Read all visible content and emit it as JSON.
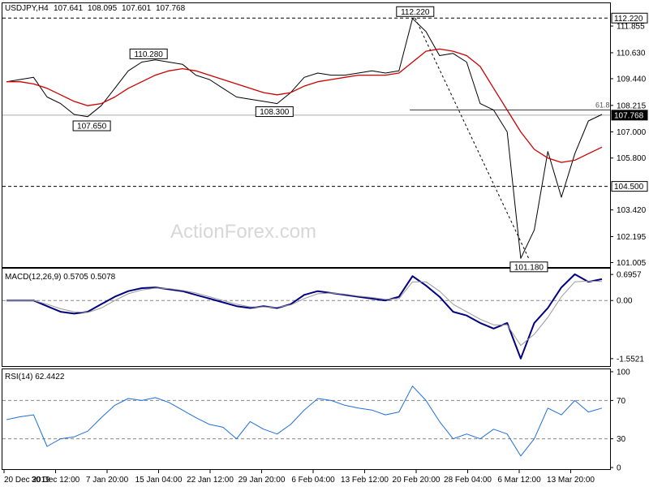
{
  "chart_data": {
    "type": "line",
    "symbol": "USDJPY",
    "timeframe": "H4",
    "header": {
      "title": "USDJPY,H4",
      "ohlc": [
        "107.641",
        "108.095",
        "107.601",
        "107.768"
      ]
    },
    "watermark": "ActionForex.com",
    "x_labels": [
      "20 Dec 2019",
      "30 Dec 12:00",
      "7 Jan 20:00",
      "15 Jan 04:00",
      "22 Jan 12:00",
      "29 Jan 20:00",
      "6 Feb 04:00",
      "13 Feb 12:00",
      "20 Feb 20:00",
      "28 Feb 04:00",
      "6 Mar 12:00",
      "13 Mar 20:00"
    ],
    "price_panel": {
      "ylim": [
        100.8,
        112.9
      ],
      "y_ticks": [
        "111.855",
        "110.630",
        "109.440",
        "108.215",
        "107.000",
        "105.800",
        "103.420",
        "102.195",
        "101.005"
      ],
      "current_price": "107.768",
      "levels": [
        {
          "value": 112.22,
          "label": "112.220",
          "style": "dashed"
        },
        {
          "value": 104.5,
          "label": "104.500",
          "style": "dashed"
        },
        {
          "value": 107.768,
          "label": "107.768",
          "style": "solid-gray"
        }
      ],
      "fib_level": {
        "label": "61.8",
        "value": 108.0
      },
      "swing_labels": [
        {
          "label": "112.220",
          "x_index": 30.2,
          "value": 112.22
        },
        {
          "label": "110.280",
          "x_index": 10.5,
          "value": 110.28
        },
        {
          "label": "107.650",
          "x_index": 6.3,
          "value": 107.65
        },
        {
          "label": "108.300",
          "x_index": 19.8,
          "value": 108.3
        },
        {
          "label": "101.180",
          "x_index": 38.6,
          "value": 101.18
        }
      ],
      "trendline": {
        "from": [
          30.2,
          112.22
        ],
        "to": [
          38.6,
          101.18
        ]
      },
      "series": [
        {
          "role": "price",
          "color": "#000000",
          "x": [
            0,
            1,
            2,
            3,
            4,
            5,
            6,
            7,
            8,
            9,
            10,
            11,
            12,
            13,
            14,
            15,
            16,
            17,
            18,
            19,
            20,
            21,
            22,
            23,
            24,
            25,
            26,
            27,
            28,
            29,
            30,
            31,
            32,
            33,
            34,
            35,
            36,
            37,
            38,
            39,
            40,
            41,
            42,
            43,
            44
          ],
          "values": [
            109.3,
            109.4,
            109.5,
            108.6,
            108.3,
            107.8,
            107.7,
            108.2,
            109.0,
            109.8,
            110.2,
            110.3,
            110.2,
            110.1,
            109.6,
            109.4,
            109.0,
            108.6,
            108.5,
            108.4,
            108.3,
            108.8,
            109.5,
            109.7,
            109.6,
            109.6,
            109.7,
            109.8,
            109.7,
            109.8,
            112.2,
            111.6,
            110.5,
            110.6,
            110.2,
            108.3,
            108.0,
            107.0,
            101.2,
            102.5,
            106.1,
            104.0,
            106.0,
            107.5,
            107.8
          ]
        },
        {
          "role": "moving-average",
          "color": "#cc0000",
          "x": [
            0,
            1,
            2,
            3,
            4,
            5,
            6,
            7,
            8,
            9,
            10,
            11,
            12,
            13,
            14,
            15,
            16,
            17,
            18,
            19,
            20,
            21,
            22,
            23,
            24,
            25,
            26,
            27,
            28,
            29,
            30,
            31,
            32,
            33,
            34,
            35,
            36,
            37,
            38,
            39,
            40,
            41,
            42,
            43,
            44
          ],
          "values": [
            109.3,
            109.3,
            109.2,
            109.0,
            108.7,
            108.4,
            108.2,
            108.3,
            108.6,
            109.0,
            109.3,
            109.6,
            109.8,
            109.9,
            109.8,
            109.6,
            109.4,
            109.2,
            109.0,
            108.8,
            108.7,
            108.8,
            109.1,
            109.3,
            109.4,
            109.5,
            109.6,
            109.6,
            109.6,
            109.7,
            110.2,
            110.7,
            110.8,
            110.7,
            110.5,
            110.0,
            109.0,
            108.0,
            107.0,
            106.2,
            105.8,
            105.6,
            105.7,
            106.0,
            106.3
          ]
        }
      ]
    },
    "macd_panel": {
      "title": "MACD(12,26,9) 0.5705 0.5078",
      "ylim": [
        -1.75,
        0.85
      ],
      "y_ticks": [
        "0.6957",
        "0.00",
        "-1.5521"
      ],
      "series": [
        {
          "role": "macd",
          "color": "#000080",
          "x": [
            0,
            1,
            2,
            3,
            4,
            5,
            6,
            7,
            8,
            9,
            10,
            11,
            12,
            13,
            14,
            15,
            16,
            17,
            18,
            19,
            20,
            21,
            22,
            23,
            24,
            25,
            26,
            27,
            28,
            29,
            30,
            31,
            32,
            33,
            34,
            35,
            36,
            37,
            38,
            39,
            40,
            41,
            42,
            43,
            44
          ],
          "values": [
            0.0,
            0.0,
            0.0,
            -0.15,
            -0.3,
            -0.35,
            -0.3,
            -0.1,
            0.1,
            0.25,
            0.33,
            0.35,
            0.3,
            0.25,
            0.15,
            0.05,
            -0.05,
            -0.15,
            -0.2,
            -0.15,
            -0.2,
            -0.1,
            0.15,
            0.25,
            0.2,
            0.15,
            0.1,
            0.05,
            0.0,
            0.1,
            0.65,
            0.4,
            0.1,
            -0.3,
            -0.4,
            -0.6,
            -0.75,
            -0.6,
            -1.55,
            -0.6,
            -0.2,
            0.35,
            0.7,
            0.5,
            0.57
          ]
        },
        {
          "role": "signal",
          "color": "#999999",
          "x": [
            0,
            1,
            2,
            3,
            4,
            5,
            6,
            7,
            8,
            9,
            10,
            11,
            12,
            13,
            14,
            15,
            16,
            17,
            18,
            19,
            20,
            21,
            22,
            23,
            24,
            25,
            26,
            27,
            28,
            29,
            30,
            31,
            32,
            33,
            34,
            35,
            36,
            37,
            38,
            39,
            40,
            41,
            42,
            43,
            44
          ],
          "values": [
            0.0,
            0.0,
            0.0,
            -0.1,
            -0.22,
            -0.3,
            -0.32,
            -0.2,
            0.0,
            0.18,
            0.28,
            0.33,
            0.32,
            0.27,
            0.2,
            0.1,
            0.0,
            -0.1,
            -0.17,
            -0.17,
            -0.18,
            -0.12,
            0.05,
            0.18,
            0.2,
            0.17,
            0.12,
            0.08,
            0.03,
            0.05,
            0.5,
            0.5,
            0.25,
            -0.1,
            -0.3,
            -0.5,
            -0.65,
            -0.65,
            -1.2,
            -0.9,
            -0.45,
            0.1,
            0.5,
            0.52,
            0.51
          ]
        }
      ]
    },
    "rsi_panel": {
      "title": "RSI(14) 62.4422",
      "ylim": [
        0,
        100
      ],
      "y_ticks": [
        "100",
        "70",
        "30",
        "0"
      ],
      "levels": [
        70,
        30
      ],
      "series": [
        {
          "role": "rsi",
          "color": "#1e6fd9",
          "x": [
            0,
            1,
            2,
            3,
            4,
            5,
            6,
            7,
            8,
            9,
            10,
            11,
            12,
            13,
            14,
            15,
            16,
            17,
            18,
            19,
            20,
            21,
            22,
            23,
            24,
            25,
            26,
            27,
            28,
            29,
            30,
            31,
            32,
            33,
            34,
            35,
            36,
            37,
            38,
            39,
            40,
            41,
            42,
            43,
            44
          ],
          "values": [
            50,
            53,
            55,
            22,
            30,
            32,
            38,
            52,
            65,
            72,
            70,
            73,
            68,
            60,
            52,
            45,
            42,
            30,
            48,
            40,
            35,
            45,
            60,
            72,
            70,
            65,
            62,
            60,
            55,
            58,
            85,
            70,
            48,
            30,
            35,
            30,
            40,
            35,
            12,
            30,
            62,
            55,
            70,
            58,
            62
          ]
        }
      ]
    }
  }
}
